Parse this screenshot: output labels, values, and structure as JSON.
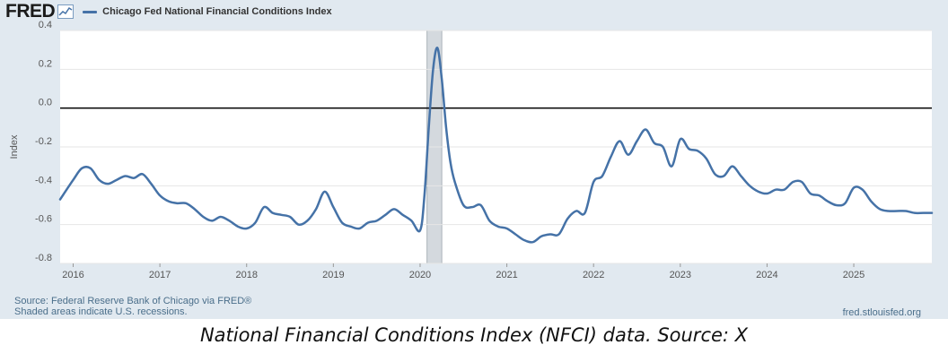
{
  "header": {
    "logo_text": "FRED",
    "logo_icon": "line-chart-icon",
    "legend_series_label": "Chicago Fed National Financial Conditions Index"
  },
  "footer": {
    "source": "Source: Federal Reserve Bank of Chicago via FRED®",
    "note": "Shaded areas indicate U.S. recessions.",
    "site": "fred.stlouisfed.org"
  },
  "caption": "National Financial Conditions Index (NFCI) data. Source: X",
  "colors": {
    "series": "#4572a7",
    "panel_background": "#e1e9f0",
    "plot_background": "#ffffff",
    "recession_shade": "#d4d9de",
    "zero_line": "#000000",
    "gridline": "#e6e6e6"
  },
  "chart_data": {
    "type": "line",
    "title": "",
    "xlabel": "",
    "ylabel": "Index",
    "ylim": [
      -0.8,
      0.4
    ],
    "xlim": [
      2015.85,
      2025.9
    ],
    "yticks": [
      {
        "value": 0.4,
        "label": "0.4"
      },
      {
        "value": 0.2,
        "label": "0.2"
      },
      {
        "value": 0.0,
        "label": "0.0"
      },
      {
        "value": -0.2,
        "label": "-0.2"
      },
      {
        "value": -0.4,
        "label": "-0.4"
      },
      {
        "value": -0.6,
        "label": "-0.6"
      },
      {
        "value": -0.8,
        "label": "-0.8"
      }
    ],
    "xticks": [
      {
        "value": 2016,
        "label": "2016"
      },
      {
        "value": 2017,
        "label": "2017"
      },
      {
        "value": 2018,
        "label": "2018"
      },
      {
        "value": 2019,
        "label": "2019"
      },
      {
        "value": 2020,
        "label": "2020"
      },
      {
        "value": 2021,
        "label": "2021"
      },
      {
        "value": 2022,
        "label": "2022"
      },
      {
        "value": 2023,
        "label": "2023"
      },
      {
        "value": 2024,
        "label": "2024"
      },
      {
        "value": 2025,
        "label": "2025"
      }
    ],
    "zero_line": 0.0,
    "grid": "horizontal",
    "legend": "top-left",
    "recessions": [
      {
        "start": 2020.08,
        "end": 2020.25
      }
    ],
    "series": [
      {
        "name": "Chicago Fed National Financial Conditions Index",
        "x": [
          2015.85,
          2016.0,
          2016.1,
          2016.2,
          2016.3,
          2016.4,
          2016.5,
          2016.6,
          2016.7,
          2016.8,
          2016.9,
          2017.0,
          2017.1,
          2017.2,
          2017.3,
          2017.4,
          2017.5,
          2017.6,
          2017.7,
          2017.8,
          2017.9,
          2018.0,
          2018.1,
          2018.2,
          2018.3,
          2018.4,
          2018.5,
          2018.6,
          2018.7,
          2018.8,
          2018.9,
          2019.0,
          2019.1,
          2019.2,
          2019.3,
          2019.4,
          2019.5,
          2019.6,
          2019.7,
          2019.8,
          2019.9,
          2020.0,
          2020.05,
          2020.1,
          2020.15,
          2020.2,
          2020.25,
          2020.3,
          2020.35,
          2020.4,
          2020.5,
          2020.6,
          2020.7,
          2020.8,
          2020.9,
          2021.0,
          2021.1,
          2021.2,
          2021.3,
          2021.4,
          2021.5,
          2021.6,
          2021.7,
          2021.8,
          2021.9,
          2022.0,
          2022.1,
          2022.2,
          2022.3,
          2022.4,
          2022.5,
          2022.6,
          2022.7,
          2022.8,
          2022.9,
          2023.0,
          2023.1,
          2023.2,
          2023.3,
          2023.4,
          2023.5,
          2023.6,
          2023.7,
          2023.8,
          2023.9,
          2024.0,
          2024.1,
          2024.2,
          2024.3,
          2024.4,
          2024.5,
          2024.6,
          2024.7,
          2024.8,
          2024.9,
          2025.0,
          2025.1,
          2025.2,
          2025.3,
          2025.4,
          2025.5,
          2025.6,
          2025.7,
          2025.8,
          2025.9
        ],
        "values": [
          -0.47,
          -0.37,
          -0.31,
          -0.31,
          -0.37,
          -0.39,
          -0.37,
          -0.35,
          -0.36,
          -0.34,
          -0.39,
          -0.45,
          -0.48,
          -0.49,
          -0.49,
          -0.52,
          -0.56,
          -0.58,
          -0.56,
          -0.58,
          -0.61,
          -0.62,
          -0.59,
          -0.51,
          -0.54,
          -0.55,
          -0.56,
          -0.6,
          -0.58,
          -0.52,
          -0.43,
          -0.51,
          -0.59,
          -0.61,
          -0.62,
          -0.59,
          -0.58,
          -0.55,
          -0.52,
          -0.55,
          -0.58,
          -0.63,
          -0.45,
          -0.1,
          0.2,
          0.31,
          0.15,
          -0.1,
          -0.28,
          -0.38,
          -0.5,
          -0.51,
          -0.5,
          -0.58,
          -0.61,
          -0.62,
          -0.65,
          -0.68,
          -0.69,
          -0.66,
          -0.65,
          -0.65,
          -0.57,
          -0.53,
          -0.54,
          -0.38,
          -0.35,
          -0.25,
          -0.17,
          -0.24,
          -0.17,
          -0.11,
          -0.18,
          -0.2,
          -0.3,
          -0.16,
          -0.21,
          -0.22,
          -0.26,
          -0.34,
          -0.35,
          -0.3,
          -0.35,
          -0.4,
          -0.43,
          -0.44,
          -0.42,
          -0.42,
          -0.38,
          -0.38,
          -0.44,
          -0.45,
          -0.48,
          -0.5,
          -0.49,
          -0.41,
          -0.42,
          -0.48,
          -0.52,
          -0.53,
          -0.53,
          -0.53,
          -0.54,
          -0.54,
          -0.54
        ]
      }
    ]
  }
}
